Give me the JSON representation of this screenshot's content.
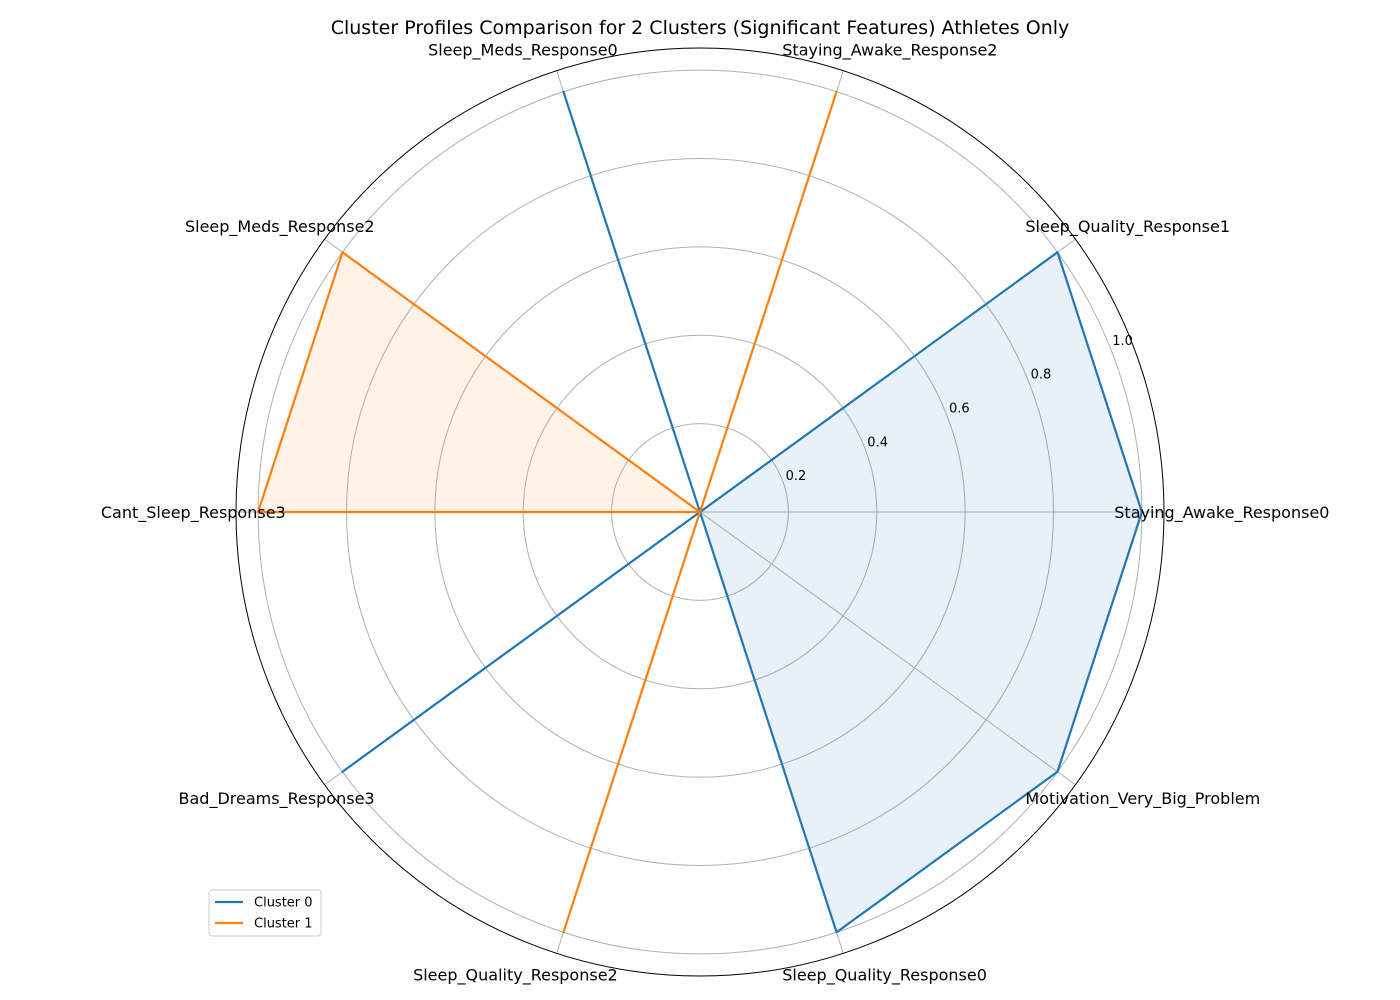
{
  "chart_data": {
    "type": "radar",
    "title": "Cluster Profiles Comparison for 2 Clusters (Significant Features) Athletes Only",
    "categories": [
      "Staying_Awake_Response0",
      "Sleep_Quality_Response1",
      "Staying_Awake_Response2",
      "Sleep_Meds_Response0",
      "Sleep_Meds_Response2",
      "Cant_Sleep_Response3",
      "Bad_Dreams_Response3",
      "Sleep_Quality_Response2",
      "Sleep_Quality_Response0",
      "Motivation_Very_Big_Problem"
    ],
    "series": [
      {
        "name": "Cluster 0",
        "color": "#1f77b4",
        "values": [
          1.0,
          1.0,
          0.0,
          1.0,
          0.0,
          0.0,
          1.0,
          0.0,
          1.0,
          1.0
        ]
      },
      {
        "name": "Cluster 1",
        "color": "#ff7f0e",
        "values": [
          0.0,
          0.0,
          1.0,
          0.0,
          1.0,
          1.0,
          0.0,
          1.0,
          0.0,
          0.0
        ]
      }
    ],
    "radial_ticks": [
      "0.2",
      "0.4",
      "0.6",
      "0.8",
      "1.0"
    ],
    "radial_tick_values": [
      0.2,
      0.4,
      0.6,
      0.8,
      1.0
    ],
    "rlim": [
      0,
      1.05
    ],
    "grid": true,
    "legend_position": "lower-left",
    "grid_color": "#b0b0b0"
  }
}
